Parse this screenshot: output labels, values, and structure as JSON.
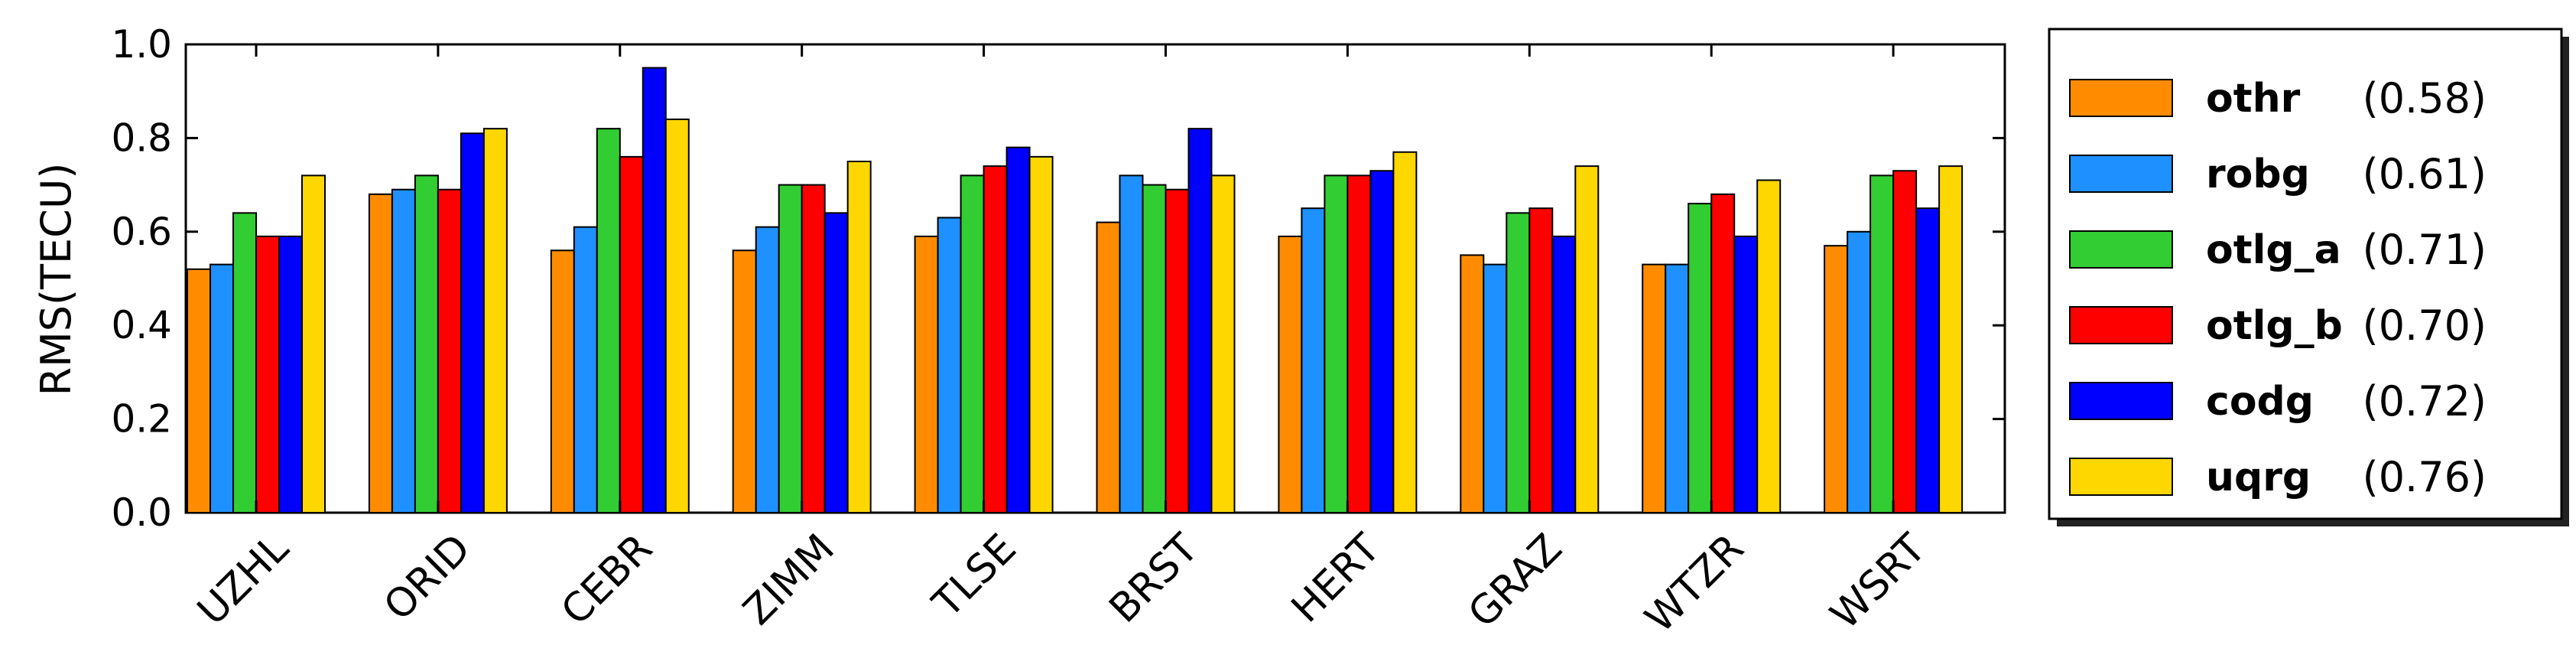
{
  "chart_data": {
    "type": "bar",
    "title": "",
    "xlabel": "",
    "ylabel": "RMS(TECU)",
    "ylim": [
      0.0,
      1.0
    ],
    "yticks": [
      "0.0",
      "0.2",
      "0.4",
      "0.6",
      "0.8",
      "1.0"
    ],
    "categories": [
      "UZHL",
      "ORID",
      "CEBR",
      "ZIMM",
      "TLSE",
      "BRST",
      "HERT",
      "GRAZ",
      "WTZR",
      "WSRT"
    ],
    "legend_position": "right",
    "series": [
      {
        "name": "othr",
        "score": "(0.58)",
        "color": "#ff8c00",
        "values": [
          0.52,
          0.68,
          0.56,
          0.56,
          0.59,
          0.62,
          0.59,
          0.55,
          0.53,
          0.57
        ]
      },
      {
        "name": "robg",
        "score": "(0.61)",
        "color": "#1e90ff",
        "values": [
          0.53,
          0.69,
          0.61,
          0.61,
          0.63,
          0.72,
          0.65,
          0.53,
          0.53,
          0.6
        ]
      },
      {
        "name": "otlg_a",
        "score": "(0.71)",
        "color": "#32cd32",
        "values": [
          0.64,
          0.72,
          0.82,
          0.7,
          0.72,
          0.7,
          0.72,
          0.64,
          0.66,
          0.72
        ]
      },
      {
        "name": "otlg_b",
        "score": "(0.70)",
        "color": "#ff0000",
        "values": [
          0.59,
          0.69,
          0.76,
          0.7,
          0.74,
          0.69,
          0.72,
          0.65,
          0.68,
          0.73
        ]
      },
      {
        "name": "codg",
        "score": "(0.72)",
        "color": "#0000ff",
        "values": [
          0.59,
          0.81,
          0.95,
          0.64,
          0.78,
          0.82,
          0.73,
          0.59,
          0.59,
          0.65
        ]
      },
      {
        "name": "uqrg",
        "score": "(0.76)",
        "color": "#ffd700",
        "values": [
          0.72,
          0.82,
          0.84,
          0.75,
          0.76,
          0.72,
          0.77,
          0.74,
          0.71,
          0.74
        ]
      }
    ]
  }
}
